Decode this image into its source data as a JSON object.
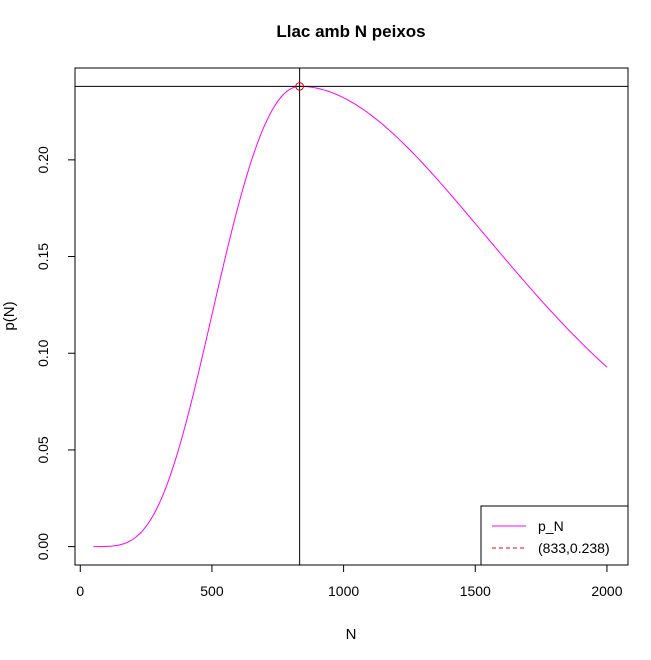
{
  "chart_data": {
    "type": "line",
    "title": "Llac amb N peixos",
    "xlabel": "N",
    "ylabel": "p(N)",
    "xlim": [
      -20,
      2080
    ],
    "ylim": [
      -0.0095,
      0.2475
    ],
    "x_ticks": [
      0,
      500,
      1000,
      1500,
      2000
    ],
    "x_tick_labels": [
      "0",
      "500",
      "1000",
      "1500",
      "2000"
    ],
    "y_ticks": [
      0.0,
      0.05,
      0.1,
      0.15,
      0.2
    ],
    "y_tick_labels": [
      "0.00",
      "0.05",
      "0.10",
      "0.15",
      "0.20"
    ],
    "grid": false,
    "series": [
      {
        "name": "p_N",
        "color": "#ff00ff",
        "line_style": "solid",
        "x": [
          50,
          100,
          150,
          200,
          230,
          250,
          275,
          300,
          325,
          350,
          375,
          400,
          425,
          450,
          475,
          500,
          525,
          550,
          575,
          600,
          625,
          650,
          675,
          700,
          725,
          750,
          775,
          800,
          833,
          850,
          875,
          900,
          950,
          1000,
          1050,
          1100,
          1150,
          1200,
          1250,
          1300,
          1350,
          1400,
          1450,
          1500,
          1550,
          1600,
          1650,
          1700,
          1750,
          1800,
          1850,
          1900,
          1950,
          2000
        ],
        "y": [
          0.0,
          0.0,
          0.0,
          0.0001,
          0.0008,
          0.0025,
          0.0072,
          0.0148,
          0.0258,
          0.0395,
          0.0554,
          0.0725,
          0.0898,
          0.1067,
          0.1228,
          0.1377,
          0.1512,
          0.1633,
          0.1739,
          0.1831,
          0.191,
          0.1976,
          0.203,
          0.2075,
          0.211,
          0.2137,
          0.2158,
          0.2172,
          0.238,
          0.2376,
          0.2366,
          0.235,
          0.2303,
          0.224,
          0.2165,
          0.2083,
          0.1997,
          0.1908,
          0.1818,
          0.1729,
          0.1642,
          0.1557,
          0.1475,
          0.1396,
          0.1321,
          0.125,
          0.1182,
          0.1118,
          0.1058,
          0.1001,
          0.0948,
          0.0898,
          0.0851,
          0.0928
        ]
      },
      {
        "name": "(833,0.238)",
        "color": "#ff0000",
        "line_style": "dashed",
        "legend_only": true
      }
    ],
    "annotations": {
      "max_point": {
        "x": 833,
        "y": 0.238,
        "color": "#cc0000",
        "marker": "circle"
      },
      "vline_x": 833,
      "hline_y": 0.238
    },
    "legend": {
      "position": "bottom-right",
      "entries": [
        {
          "label": "p_N",
          "color": "#ff00ff",
          "line_style": "solid"
        },
        {
          "label": "(833,0.238)",
          "color": "#ff0000",
          "line_style": "dashed"
        }
      ]
    }
  }
}
